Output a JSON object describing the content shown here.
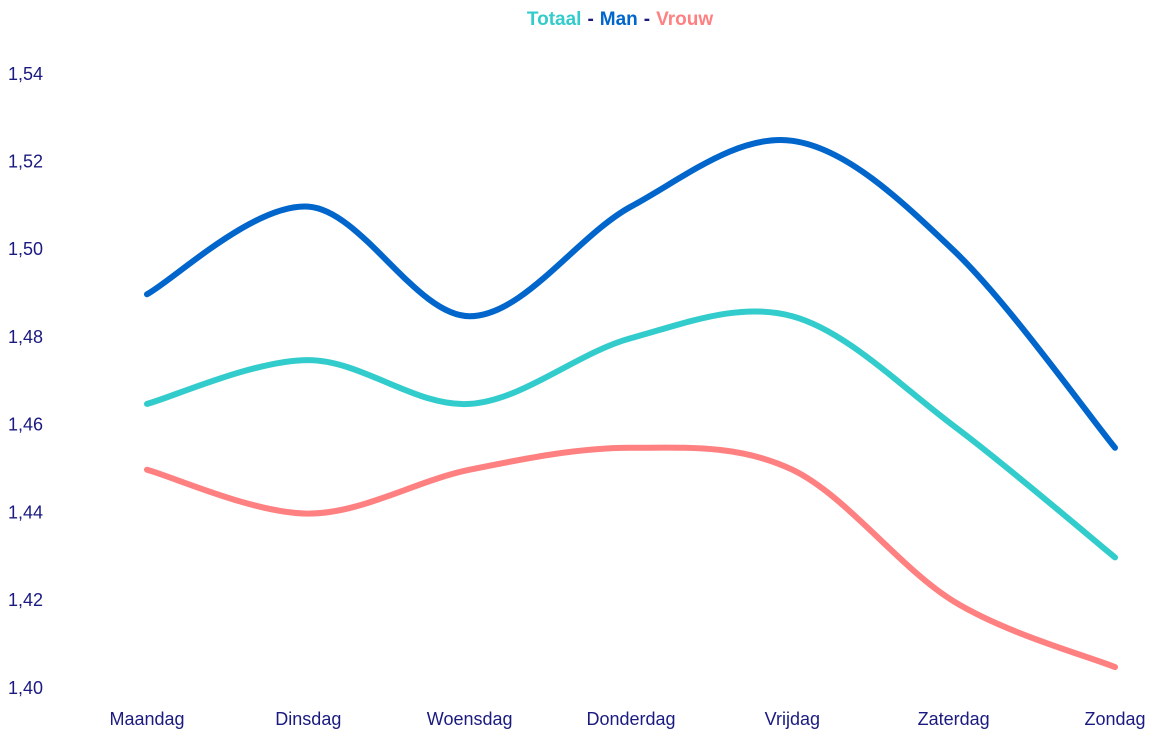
{
  "chart_data": {
    "type": "line",
    "legend_separator": "-",
    "categories": [
      "Maandag",
      "Dinsdag",
      "Woensdag",
      "Donderdag",
      "Vrijdag",
      "Zaterdag",
      "Zondag"
    ],
    "series": [
      {
        "name": "Totaal",
        "color": "#33cccc",
        "values": [
          1.465,
          1.475,
          1.465,
          1.48,
          1.485,
          1.46,
          1.43
        ]
      },
      {
        "name": "Man",
        "color": "#0066cc",
        "values": [
          1.49,
          1.51,
          1.485,
          1.51,
          1.525,
          1.5,
          1.455
        ]
      },
      {
        "name": "Vrouw",
        "color": "#ff8080",
        "values": [
          1.45,
          1.44,
          1.45,
          1.455,
          1.45,
          1.42,
          1.405
        ]
      }
    ],
    "ylim": [
      1.4,
      1.54
    ],
    "yticks": [
      {
        "value": 1.4,
        "label": "1,40"
      },
      {
        "value": 1.42,
        "label": "1,42"
      },
      {
        "value": 1.44,
        "label": "1,44"
      },
      {
        "value": 1.46,
        "label": "1,46"
      },
      {
        "value": 1.48,
        "label": "1,48"
      },
      {
        "value": 1.5,
        "label": "1,50"
      },
      {
        "value": 1.52,
        "label": "1,52"
      },
      {
        "value": 1.54,
        "label": "1,54"
      }
    ],
    "smooth": true
  }
}
